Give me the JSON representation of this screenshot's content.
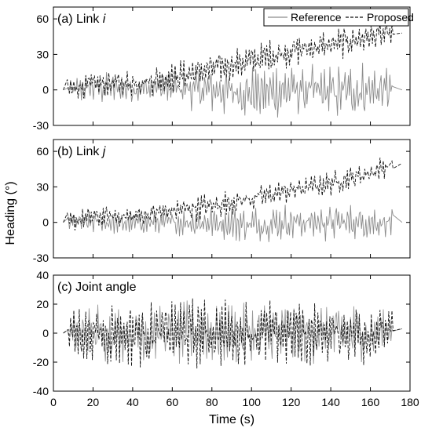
{
  "chart_data": [
    {
      "type": "line",
      "title": "(a) Link ",
      "title_italic": "i",
      "x_range": [
        0,
        180
      ],
      "ylim": [
        -30,
        70
      ],
      "yticks": [
        "-30",
        "0",
        "30",
        "60"
      ],
      "legend": {
        "placement": "top-right",
        "entries": [
          "Reference",
          "Proposed"
        ]
      },
      "series": [
        {
          "name": "Reference",
          "color": "#8c8c8c",
          "style": "solid",
          "x": [
            7,
            20,
            40,
            60,
            80,
            100,
            120,
            140,
            160,
            172
          ],
          "y": [
            0,
            2,
            1,
            2,
            0,
            -3,
            0,
            -2,
            0,
            0
          ],
          "amplitude": [
            8,
            12,
            12,
            14,
            18,
            20,
            22,
            22,
            22,
            18
          ]
        },
        {
          "name": "Proposed",
          "color": "#111111",
          "style": "dashed",
          "x": [
            7,
            20,
            40,
            60,
            80,
            100,
            120,
            140,
            160,
            172
          ],
          "y": [
            0,
            5,
            6,
            10,
            18,
            25,
            33,
            38,
            45,
            48
          ],
          "amplitude": [
            8,
            10,
            10,
            12,
            12,
            12,
            12,
            12,
            12,
            10
          ]
        }
      ]
    },
    {
      "type": "line",
      "title": "(b) Link ",
      "title_italic": "j",
      "x_range": [
        0,
        180
      ],
      "ylim": [
        -30,
        70
      ],
      "yticks": [
        "-30",
        "0",
        "30",
        "60"
      ],
      "series": [
        {
          "name": "Reference",
          "color": "#8c8c8c",
          "style": "solid",
          "x": [
            7,
            20,
            40,
            60,
            80,
            100,
            120,
            140,
            160,
            172
          ],
          "y": [
            0,
            0,
            -1,
            0,
            0,
            -2,
            0,
            0,
            0,
            0
          ],
          "amplitude": [
            7,
            8,
            8,
            10,
            12,
            14,
            14,
            14,
            14,
            12
          ]
        },
        {
          "name": "Proposed",
          "color": "#111111",
          "style": "dashed",
          "x": [
            7,
            20,
            40,
            60,
            80,
            100,
            120,
            140,
            160,
            172
          ],
          "y": [
            0,
            5,
            5,
            10,
            14,
            20,
            27,
            33,
            42,
            50
          ],
          "amplitude": [
            7,
            8,
            8,
            10,
            10,
            10,
            9,
            9,
            9,
            8
          ]
        }
      ]
    },
    {
      "type": "line",
      "title": "(c) Joint angle",
      "title_italic": "",
      "x_range": [
        0,
        180
      ],
      "ylim": [
        -40,
        40
      ],
      "yticks": [
        "-40",
        "-20",
        "0",
        "20",
        "40"
      ],
      "xticks": [
        "0",
        "20",
        "40",
        "60",
        "80",
        "100",
        "120",
        "140",
        "160",
        "180"
      ],
      "xlabel": "Time (s)",
      "series": [
        {
          "name": "Reference",
          "color": "#999999",
          "style": "solid",
          "x": [
            7,
            20,
            40,
            60,
            80,
            100,
            120,
            140,
            160,
            172
          ],
          "y": [
            0,
            0,
            0,
            0,
            0,
            0,
            0,
            0,
            0,
            3
          ],
          "amplitude": [
            14,
            18,
            18,
            20,
            18,
            18,
            18,
            18,
            18,
            10
          ]
        },
        {
          "name": "Proposed",
          "color": "#111111",
          "style": "dashed",
          "x": [
            7,
            20,
            40,
            60,
            80,
            100,
            120,
            140,
            160,
            172
          ],
          "y": [
            0,
            0,
            0,
            0,
            0,
            0,
            0,
            0,
            0,
            3
          ],
          "amplitude": [
            15,
            20,
            20,
            22,
            20,
            20,
            20,
            20,
            20,
            10
          ]
        }
      ]
    }
  ],
  "shared_ylabel": "Heading (°)"
}
